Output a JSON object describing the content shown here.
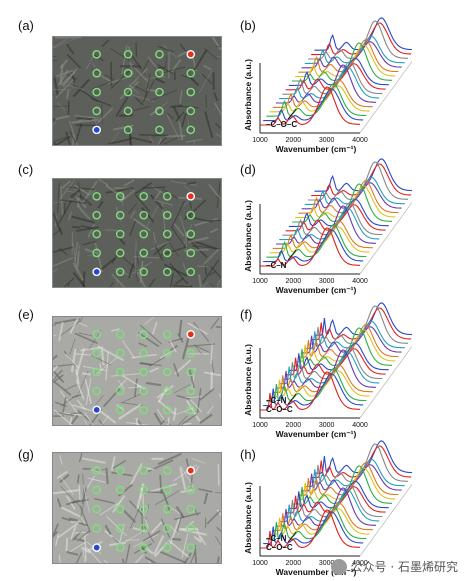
{
  "panels": [
    {
      "id": "a",
      "label": "(a)",
      "kind": "micrograph",
      "style": "dark",
      "grid_cols": 4,
      "grid_rows": 5
    },
    {
      "id": "b",
      "label": "(b)",
      "kind": "spectrum",
      "ylabel": "Absorbance (a.u.)",
      "xlabel": "Wavenumber (cm⁻¹)",
      "ticks": [
        "1000",
        "2000",
        "3000",
        "4000"
      ],
      "annotations": [
        "–C–O–C"
      ]
    },
    {
      "id": "c",
      "label": "(c)",
      "kind": "micrograph",
      "style": "dark",
      "grid_cols": 5,
      "grid_rows": 5
    },
    {
      "id": "d",
      "label": "(d)",
      "kind": "spectrum",
      "ylabel": "Absorbance (a.u.)",
      "xlabel": "Wavenumber (cm⁻¹)",
      "ticks": [
        "1000",
        "2000",
        "3000",
        "4000"
      ],
      "annotations": [
        "–C–N"
      ]
    },
    {
      "id": "e",
      "label": "(e)",
      "kind": "micrograph",
      "style": "light",
      "grid_cols": 5,
      "grid_rows": 5
    },
    {
      "id": "f",
      "label": "(f)",
      "kind": "spectrum",
      "ylabel": "Absorbance (a.u.)",
      "xlabel": "Wavenumber (cm⁻¹)",
      "ticks": [
        "1000",
        "2000",
        "3000",
        "4000"
      ],
      "annotations": [
        "–C–N",
        "C–O–C"
      ]
    },
    {
      "id": "g",
      "label": "(g)",
      "kind": "micrograph",
      "style": "light",
      "grid_cols": 5,
      "grid_rows": 5
    },
    {
      "id": "h",
      "label": "(h)",
      "kind": "spectrum",
      "ylabel": "Absorbance (a.u.)",
      "xlabel": "Wavenumber (cm⁻¹)",
      "ticks": [
        "1000",
        "2000",
        "3000",
        "4000"
      ],
      "annotations": [
        "–C–N",
        "C–O–C"
      ]
    }
  ],
  "colors": {
    "marker_green": "#7fe07a",
    "marker_red": "#e0321e",
    "marker_blue": "#2448d8",
    "spectrum_cycle": [
      "#e02020",
      "#2a48c8",
      "#2bb04a",
      "#e0c020",
      "#e07a20",
      "#6a3ab0",
      "#20a0c0",
      "#888888"
    ]
  },
  "watermark": "公众号 · 石墨烯研究"
}
